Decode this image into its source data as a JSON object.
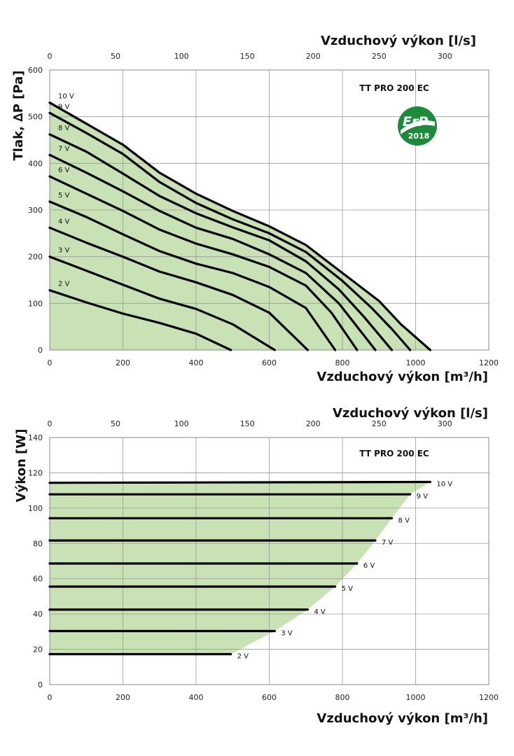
{
  "chart_data": [
    {
      "type": "line",
      "model": "TT PRO 200 EC",
      "badge": {
        "text": "ErP",
        "year": "2018",
        "color": "#1e8a3c"
      },
      "xlabel_bottom": "Vzduchový výkon [m³/h]",
      "xlabel_top": "Vzduchový výkon [l/s]",
      "ylabel": "Tlak, ∆P [Pa]",
      "xlim": [
        0,
        1200
      ],
      "ylim": [
        0,
        600
      ],
      "x_ticks": [
        "0",
        "200",
        "400",
        "600",
        "800",
        "1000",
        "1200"
      ],
      "y_ticks": [
        "0",
        "100",
        "200",
        "300",
        "400",
        "500",
        "600"
      ],
      "top_ticks": [
        "0",
        "50",
        "100",
        "150",
        "200",
        "250",
        "300"
      ],
      "fill_color": "#c9e2b5",
      "series": [
        {
          "name": "10 V",
          "points": [
            [
              0,
              530
            ],
            [
              100,
              485
            ],
            [
              200,
              440
            ],
            [
              300,
              380
            ],
            [
              400,
              335
            ],
            [
              500,
              298
            ],
            [
              600,
              265
            ],
            [
              700,
              225
            ],
            [
              800,
              165
            ],
            [
              900,
              105
            ],
            [
              960,
              55
            ],
            [
              1040,
              0
            ]
          ]
        },
        {
          "name": "9 V",
          "points": [
            [
              0,
              508
            ],
            [
              100,
              465
            ],
            [
              200,
              420
            ],
            [
              300,
              360
            ],
            [
              400,
              315
            ],
            [
              500,
              280
            ],
            [
              600,
              250
            ],
            [
              700,
              210
            ],
            [
              800,
              148
            ],
            [
              880,
              90
            ],
            [
              935,
              45
            ],
            [
              985,
              0
            ]
          ]
        },
        {
          "name": "8 V",
          "points": [
            [
              0,
              462
            ],
            [
              100,
              425
            ],
            [
              200,
              378
            ],
            [
              300,
              330
            ],
            [
              400,
              293
            ],
            [
              500,
              263
            ],
            [
              600,
              235
            ],
            [
              700,
              190
            ],
            [
              790,
              130
            ],
            [
              860,
              70
            ],
            [
              935,
              0
            ]
          ]
        },
        {
          "name": "7 V",
          "points": [
            [
              0,
              418
            ],
            [
              100,
              380
            ],
            [
              200,
              340
            ],
            [
              300,
              298
            ],
            [
              400,
              262
            ],
            [
              500,
              238
            ],
            [
              600,
              205
            ],
            [
              700,
              165
            ],
            [
              790,
              100
            ],
            [
              890,
              0
            ]
          ]
        },
        {
          "name": "6 V",
          "points": [
            [
              0,
              372
            ],
            [
              100,
              335
            ],
            [
              200,
              298
            ],
            [
              300,
              258
            ],
            [
              400,
              228
            ],
            [
              500,
              205
            ],
            [
              600,
              178
            ],
            [
              700,
              138
            ],
            [
              770,
              80
            ],
            [
              840,
              0
            ]
          ]
        },
        {
          "name": "5 V",
          "points": [
            [
              0,
              318
            ],
            [
              100,
              285
            ],
            [
              200,
              248
            ],
            [
              300,
              212
            ],
            [
              400,
              185
            ],
            [
              500,
              165
            ],
            [
              600,
              135
            ],
            [
              700,
              90
            ],
            [
              780,
              0
            ]
          ]
        },
        {
          "name": "4 V",
          "points": [
            [
              0,
              262
            ],
            [
              100,
              230
            ],
            [
              200,
              200
            ],
            [
              300,
              168
            ],
            [
              400,
              145
            ],
            [
              500,
              118
            ],
            [
              600,
              80
            ],
            [
              705,
              0
            ]
          ]
        },
        {
          "name": "3 V",
          "points": [
            [
              0,
              200
            ],
            [
              100,
              170
            ],
            [
              200,
              140
            ],
            [
              300,
              110
            ],
            [
              400,
              88
            ],
            [
              500,
              55
            ],
            [
              615,
              0
            ]
          ]
        },
        {
          "name": "2 V",
          "points": [
            [
              0,
              128
            ],
            [
              100,
              102
            ],
            [
              200,
              78
            ],
            [
              300,
              58
            ],
            [
              400,
              35
            ],
            [
              495,
              0
            ]
          ]
        }
      ]
    },
    {
      "type": "line",
      "model": "TT PRO 200 EC",
      "xlabel_bottom": "Vzduchový výkon [m³/h]",
      "xlabel_top": "Vzduchový výkon [l/s]",
      "ylabel": "Výkon [W]",
      "xlim": [
        0,
        1200
      ],
      "ylim": [
        0,
        150
      ],
      "x_ticks": [
        "0",
        "200",
        "400",
        "600",
        "800",
        "1000",
        "1200"
      ],
      "y_ticks": [
        "0",
        "20",
        "40",
        "60",
        "80",
        "100",
        "120",
        "140"
      ],
      "top_ticks": [
        "0",
        "50",
        "100",
        "150",
        "200",
        "250",
        "300"
      ],
      "fill_color": "#c9e2b5",
      "series": [
        {
          "name": "10 V",
          "points": [
            [
              0,
              122.5
            ],
            [
              1040,
              123
            ]
          ]
        },
        {
          "name": "9 V",
          "points": [
            [
              0,
              115.5
            ],
            [
              985,
              115.5
            ]
          ]
        },
        {
          "name": "8 V",
          "points": [
            [
              0,
              101
            ],
            [
              935,
              101
            ]
          ]
        },
        {
          "name": "7 V",
          "points": [
            [
              0,
              87.5
            ],
            [
              890,
              87.5
            ]
          ]
        },
        {
          "name": "6 V",
          "points": [
            [
              0,
              73.5
            ],
            [
              840,
              73.5
            ]
          ]
        },
        {
          "name": "5 V",
          "points": [
            [
              0,
              59.5
            ],
            [
              780,
              59.5
            ]
          ]
        },
        {
          "name": "4 V",
          "points": [
            [
              0,
              45.5
            ],
            [
              705,
              45.5
            ]
          ]
        },
        {
          "name": "3 V",
          "points": [
            [
              0,
              32.5
            ],
            [
              615,
              32.5
            ]
          ]
        },
        {
          "name": "2 V",
          "points": [
            [
              0,
              18.5
            ],
            [
              495,
              18.5
            ]
          ]
        }
      ]
    }
  ]
}
